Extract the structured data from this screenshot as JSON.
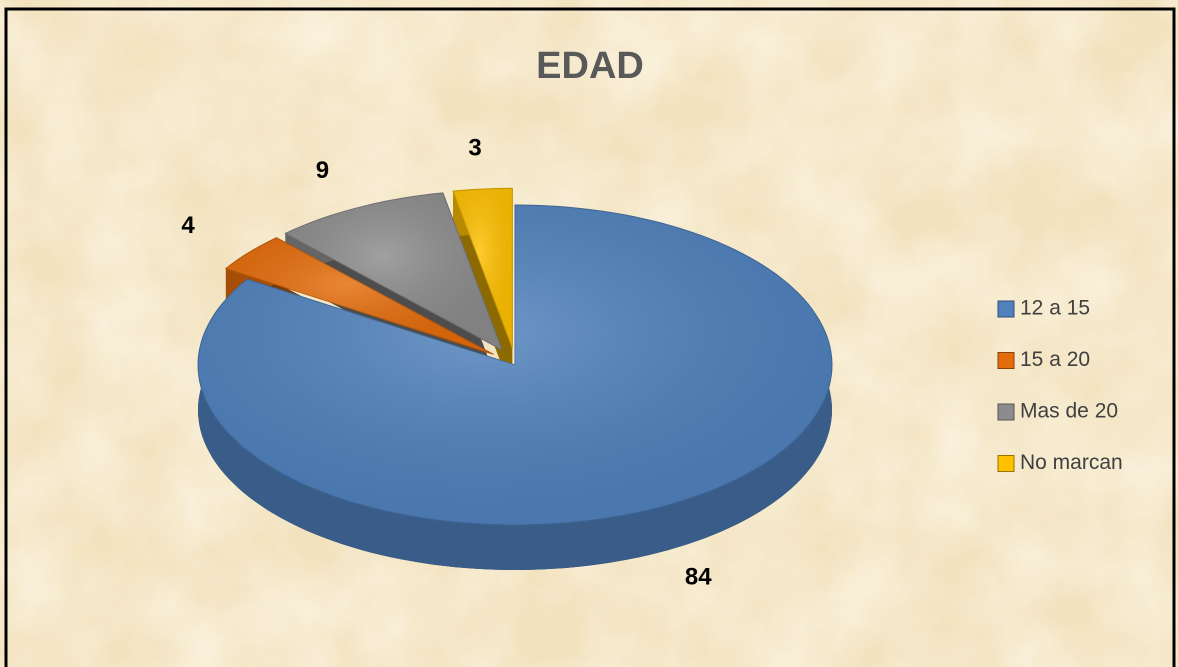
{
  "chart_data": {
    "type": "pie",
    "title": "EDAD",
    "categories": [
      "12 a 15",
      "15 a 20",
      "Mas de 20",
      "No marcan"
    ],
    "values": [
      84,
      4,
      9,
      3
    ],
    "colors": [
      "#4f81bd",
      "#e46c0a",
      "#8c8c8c",
      "#ffc000"
    ],
    "legend": "right"
  }
}
